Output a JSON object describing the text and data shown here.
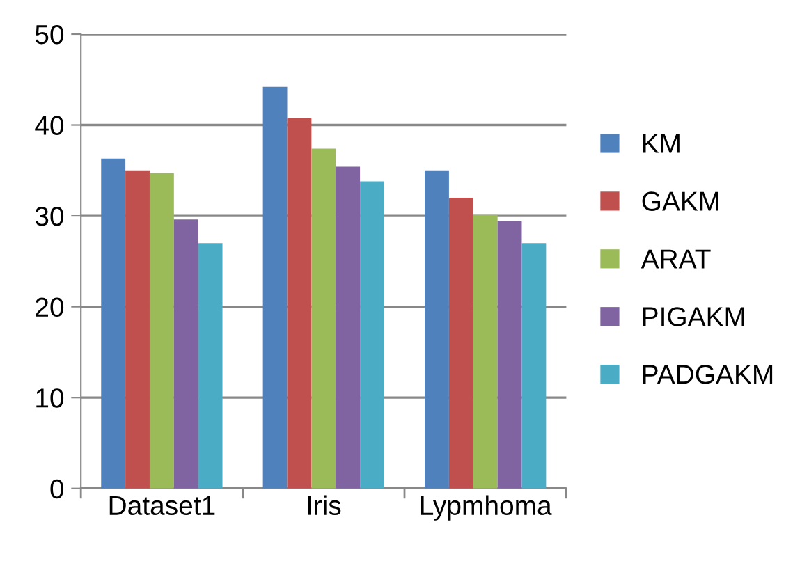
{
  "chart_data": {
    "type": "bar",
    "categories": [
      "Dataset1",
      "Iris",
      "Lypmhoma"
    ],
    "series": [
      {
        "name": "KM",
        "color": "#4f81bd",
        "values": [
          36.3,
          44.2,
          35.0
        ]
      },
      {
        "name": "GAKM",
        "color": "#c0504d",
        "values": [
          35.0,
          40.8,
          32.0
        ]
      },
      {
        "name": "ARAT",
        "color": "#9bbb59",
        "values": [
          34.7,
          37.4,
          30.1
        ]
      },
      {
        "name": "PIGAKM",
        "color": "#8064a2",
        "values": [
          29.6,
          35.4,
          29.4
        ]
      },
      {
        "name": "PADGAKM",
        "color": "#4bacc6",
        "values": [
          27.0,
          33.8,
          27.0
        ]
      }
    ],
    "ylim": [
      0,
      50
    ],
    "yticks": [
      0,
      10,
      20,
      30,
      40,
      50
    ],
    "grid": "y",
    "legend": "right"
  }
}
